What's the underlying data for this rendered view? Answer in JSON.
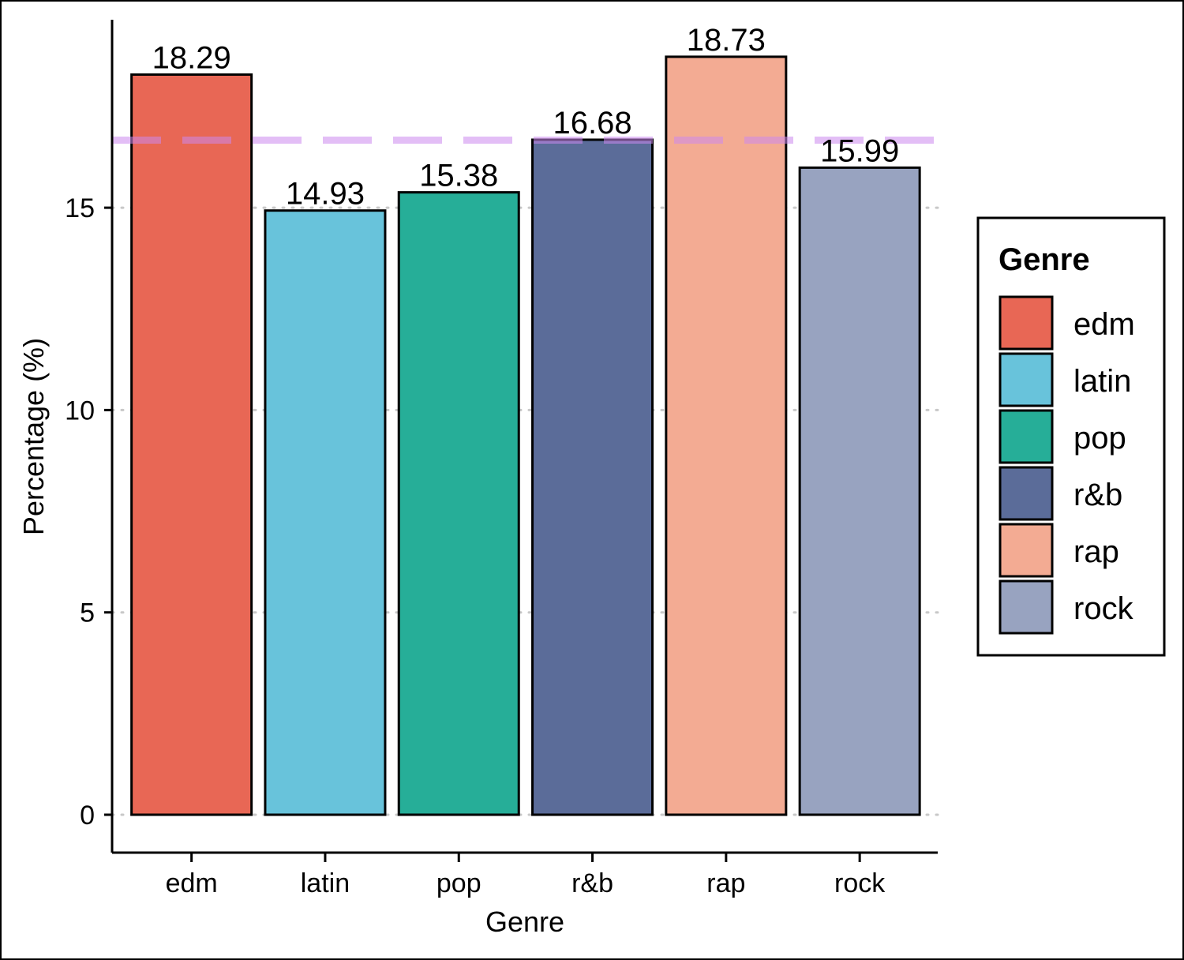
{
  "chart_data": {
    "type": "bar",
    "categories": [
      "edm",
      "latin",
      "pop",
      "r&b",
      "rap",
      "rock"
    ],
    "values": [
      18.29,
      14.93,
      15.38,
      16.68,
      18.73,
      15.99
    ],
    "value_labels": [
      "18.29",
      "14.93",
      "15.38",
      "16.68",
      "18.73",
      "15.99"
    ],
    "colors": [
      "#E86755",
      "#68C3DB",
      "#26AE98",
      "#5B6C99",
      "#F3AB93",
      "#98A3C0"
    ],
    "xlabel": "Genre",
    "ylabel": "Percentage (%)",
    "yticks": [
      0,
      5,
      10,
      15
    ],
    "ytick_labels": [
      "0",
      "5",
      "10",
      "15"
    ],
    "ylim": [
      -0.9,
      19.7
    ],
    "grid": "horizontal dotted",
    "reference_line": {
      "value": 16.67,
      "style": "dashed",
      "color": "#CC88EE"
    },
    "legend": {
      "title": "Genre",
      "position": "right",
      "entries": [
        "edm",
        "latin",
        "pop",
        "r&b",
        "rap",
        "rock"
      ]
    }
  }
}
